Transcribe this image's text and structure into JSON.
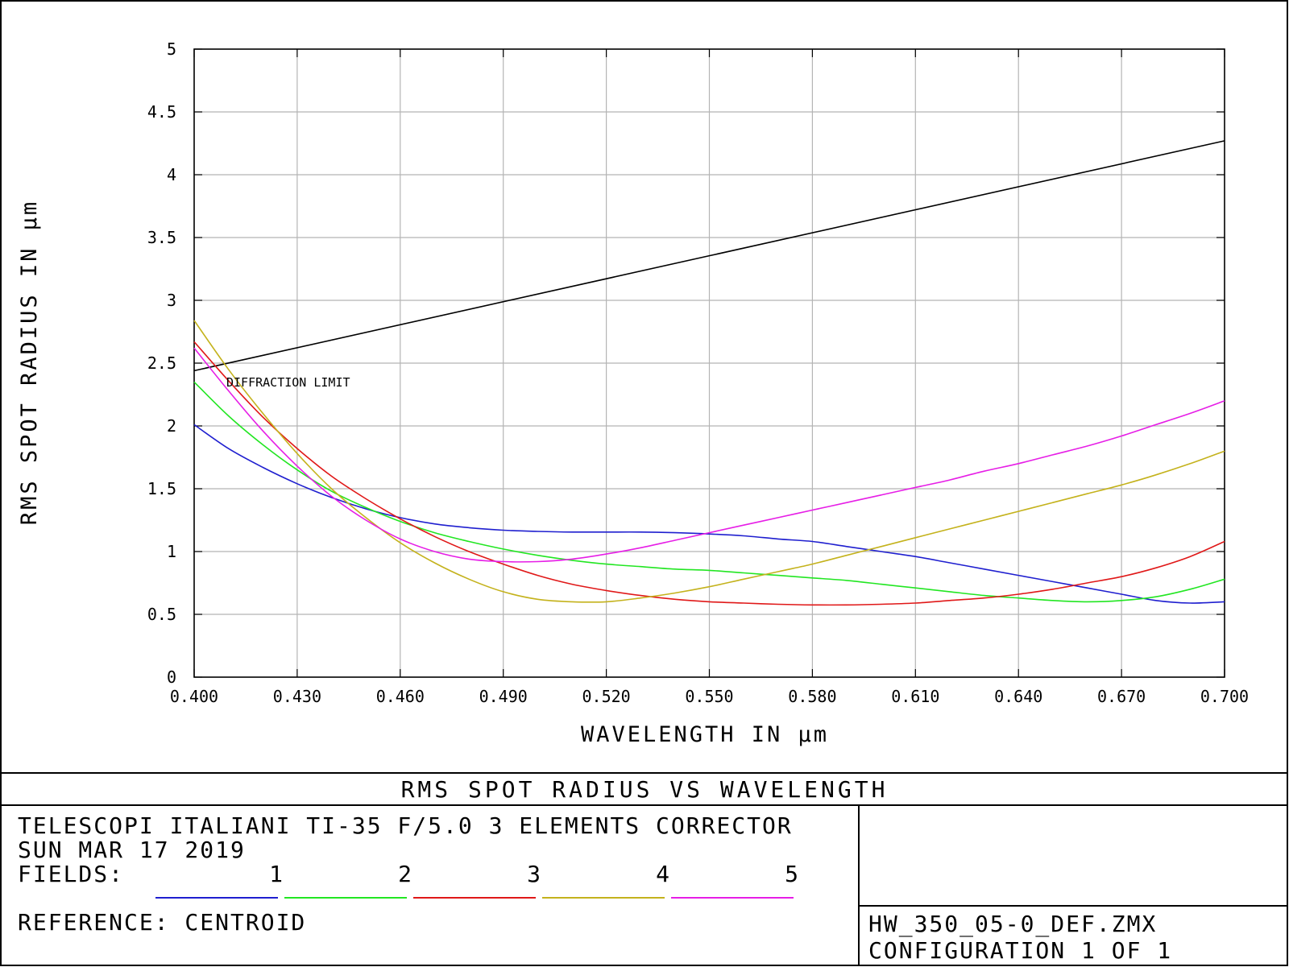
{
  "chart_data": {
    "type": "line",
    "title": "RMS SPOT RADIUS VS WAVELENGTH",
    "xlabel": "WAVELENGTH IN µm",
    "ylabel": "RMS SPOT RADIUS IN µm",
    "xlim": [
      0.4,
      0.7
    ],
    "ylim": [
      0,
      5
    ],
    "grid": true,
    "x_ticks": [
      "0.400",
      "0.430",
      "0.460",
      "0.490",
      "0.520",
      "0.550",
      "0.580",
      "0.610",
      "0.640",
      "0.670",
      "0.700"
    ],
    "y_ticks": [
      "0",
      "0.5",
      "1",
      "1.5",
      "2",
      "2.5",
      "3",
      "3.5",
      "4",
      "4.5",
      "5"
    ],
    "annotation": "DIFFRACTION LIMIT",
    "diffraction_limit": {
      "color": "#000000",
      "x": [
        0.4,
        0.7
      ],
      "values": [
        2.44,
        4.27
      ]
    },
    "series": [
      {
        "name": "1",
        "color": "#1f1fcf",
        "x": [
          0.4,
          0.41,
          0.42,
          0.43,
          0.44,
          0.45,
          0.46,
          0.47,
          0.48,
          0.49,
          0.5,
          0.51,
          0.52,
          0.53,
          0.54,
          0.55,
          0.56,
          0.57,
          0.58,
          0.59,
          0.6,
          0.61,
          0.62,
          0.63,
          0.64,
          0.65,
          0.66,
          0.67,
          0.68,
          0.69,
          0.7
        ],
        "values": [
          2.01,
          1.82,
          1.67,
          1.54,
          1.43,
          1.34,
          1.27,
          1.22,
          1.19,
          1.17,
          1.16,
          1.155,
          1.155,
          1.155,
          1.15,
          1.14,
          1.125,
          1.1,
          1.08,
          1.04,
          1.0,
          0.96,
          0.91,
          0.86,
          0.81,
          0.76,
          0.71,
          0.66,
          0.61,
          0.59,
          0.6
        ]
      },
      {
        "name": "2",
        "color": "#22e622",
        "x": [
          0.4,
          0.41,
          0.42,
          0.43,
          0.44,
          0.45,
          0.46,
          0.47,
          0.48,
          0.49,
          0.5,
          0.51,
          0.52,
          0.53,
          0.54,
          0.55,
          0.56,
          0.57,
          0.58,
          0.59,
          0.6,
          0.61,
          0.62,
          0.63,
          0.64,
          0.65,
          0.66,
          0.67,
          0.68,
          0.69,
          0.7
        ],
        "values": [
          2.35,
          2.08,
          1.85,
          1.65,
          1.48,
          1.35,
          1.24,
          1.15,
          1.08,
          1.02,
          0.97,
          0.93,
          0.9,
          0.88,
          0.86,
          0.85,
          0.83,
          0.81,
          0.79,
          0.77,
          0.74,
          0.71,
          0.68,
          0.65,
          0.63,
          0.61,
          0.6,
          0.61,
          0.64,
          0.7,
          0.78
        ]
      },
      {
        "name": "3",
        "color": "#e01818",
        "x": [
          0.4,
          0.41,
          0.42,
          0.43,
          0.44,
          0.45,
          0.46,
          0.47,
          0.48,
          0.49,
          0.5,
          0.51,
          0.52,
          0.53,
          0.54,
          0.55,
          0.56,
          0.57,
          0.58,
          0.59,
          0.6,
          0.61,
          0.62,
          0.63,
          0.64,
          0.65,
          0.66,
          0.67,
          0.68,
          0.69,
          0.7
        ],
        "values": [
          2.67,
          2.36,
          2.07,
          1.82,
          1.6,
          1.42,
          1.26,
          1.12,
          1.0,
          0.9,
          0.81,
          0.74,
          0.69,
          0.65,
          0.62,
          0.6,
          0.59,
          0.58,
          0.575,
          0.575,
          0.58,
          0.59,
          0.61,
          0.63,
          0.66,
          0.7,
          0.75,
          0.8,
          0.87,
          0.96,
          1.08
        ]
      },
      {
        "name": "4",
        "color": "#c4b21c",
        "x": [
          0.4,
          0.41,
          0.42,
          0.43,
          0.44,
          0.45,
          0.46,
          0.47,
          0.48,
          0.49,
          0.5,
          0.51,
          0.52,
          0.53,
          0.54,
          0.55,
          0.56,
          0.57,
          0.58,
          0.59,
          0.6,
          0.61,
          0.62,
          0.63,
          0.64,
          0.65,
          0.66,
          0.67,
          0.68,
          0.69,
          0.7
        ],
        "values": [
          2.84,
          2.45,
          2.1,
          1.78,
          1.5,
          1.27,
          1.07,
          0.91,
          0.78,
          0.68,
          0.62,
          0.6,
          0.6,
          0.63,
          0.67,
          0.72,
          0.78,
          0.84,
          0.9,
          0.97,
          1.04,
          1.11,
          1.18,
          1.25,
          1.32,
          1.39,
          1.46,
          1.53,
          1.61,
          1.7,
          1.8
        ]
      },
      {
        "name": "5",
        "color": "#e61ee6",
        "x": [
          0.4,
          0.41,
          0.42,
          0.43,
          0.44,
          0.45,
          0.46,
          0.47,
          0.48,
          0.49,
          0.5,
          0.51,
          0.52,
          0.53,
          0.54,
          0.55,
          0.56,
          0.57,
          0.58,
          0.59,
          0.6,
          0.61,
          0.62,
          0.63,
          0.64,
          0.65,
          0.66,
          0.67,
          0.68,
          0.69,
          0.7
        ],
        "values": [
          2.62,
          2.28,
          1.96,
          1.68,
          1.44,
          1.25,
          1.1,
          1.0,
          0.94,
          0.92,
          0.92,
          0.94,
          0.98,
          1.03,
          1.09,
          1.15,
          1.21,
          1.27,
          1.33,
          1.39,
          1.45,
          1.51,
          1.57,
          1.64,
          1.7,
          1.77,
          1.84,
          1.92,
          2.01,
          2.1,
          2.2
        ]
      }
    ]
  },
  "footer": {
    "title": "RMS SPOT RADIUS VS WAVELENGTH",
    "info_line1": "TELESCOPI ITALIANI TI-35 F/5.0  3 ELEMENTS CORRECTOR",
    "info_line2": "SUN MAR 17 2019",
    "fields_label": "FIELDS:",
    "reference": "REFERENCE: CENTROID",
    "file_name": "HW_350_05-0_DEF.ZMX",
    "configuration": "CONFIGURATION 1 OF 1"
  }
}
